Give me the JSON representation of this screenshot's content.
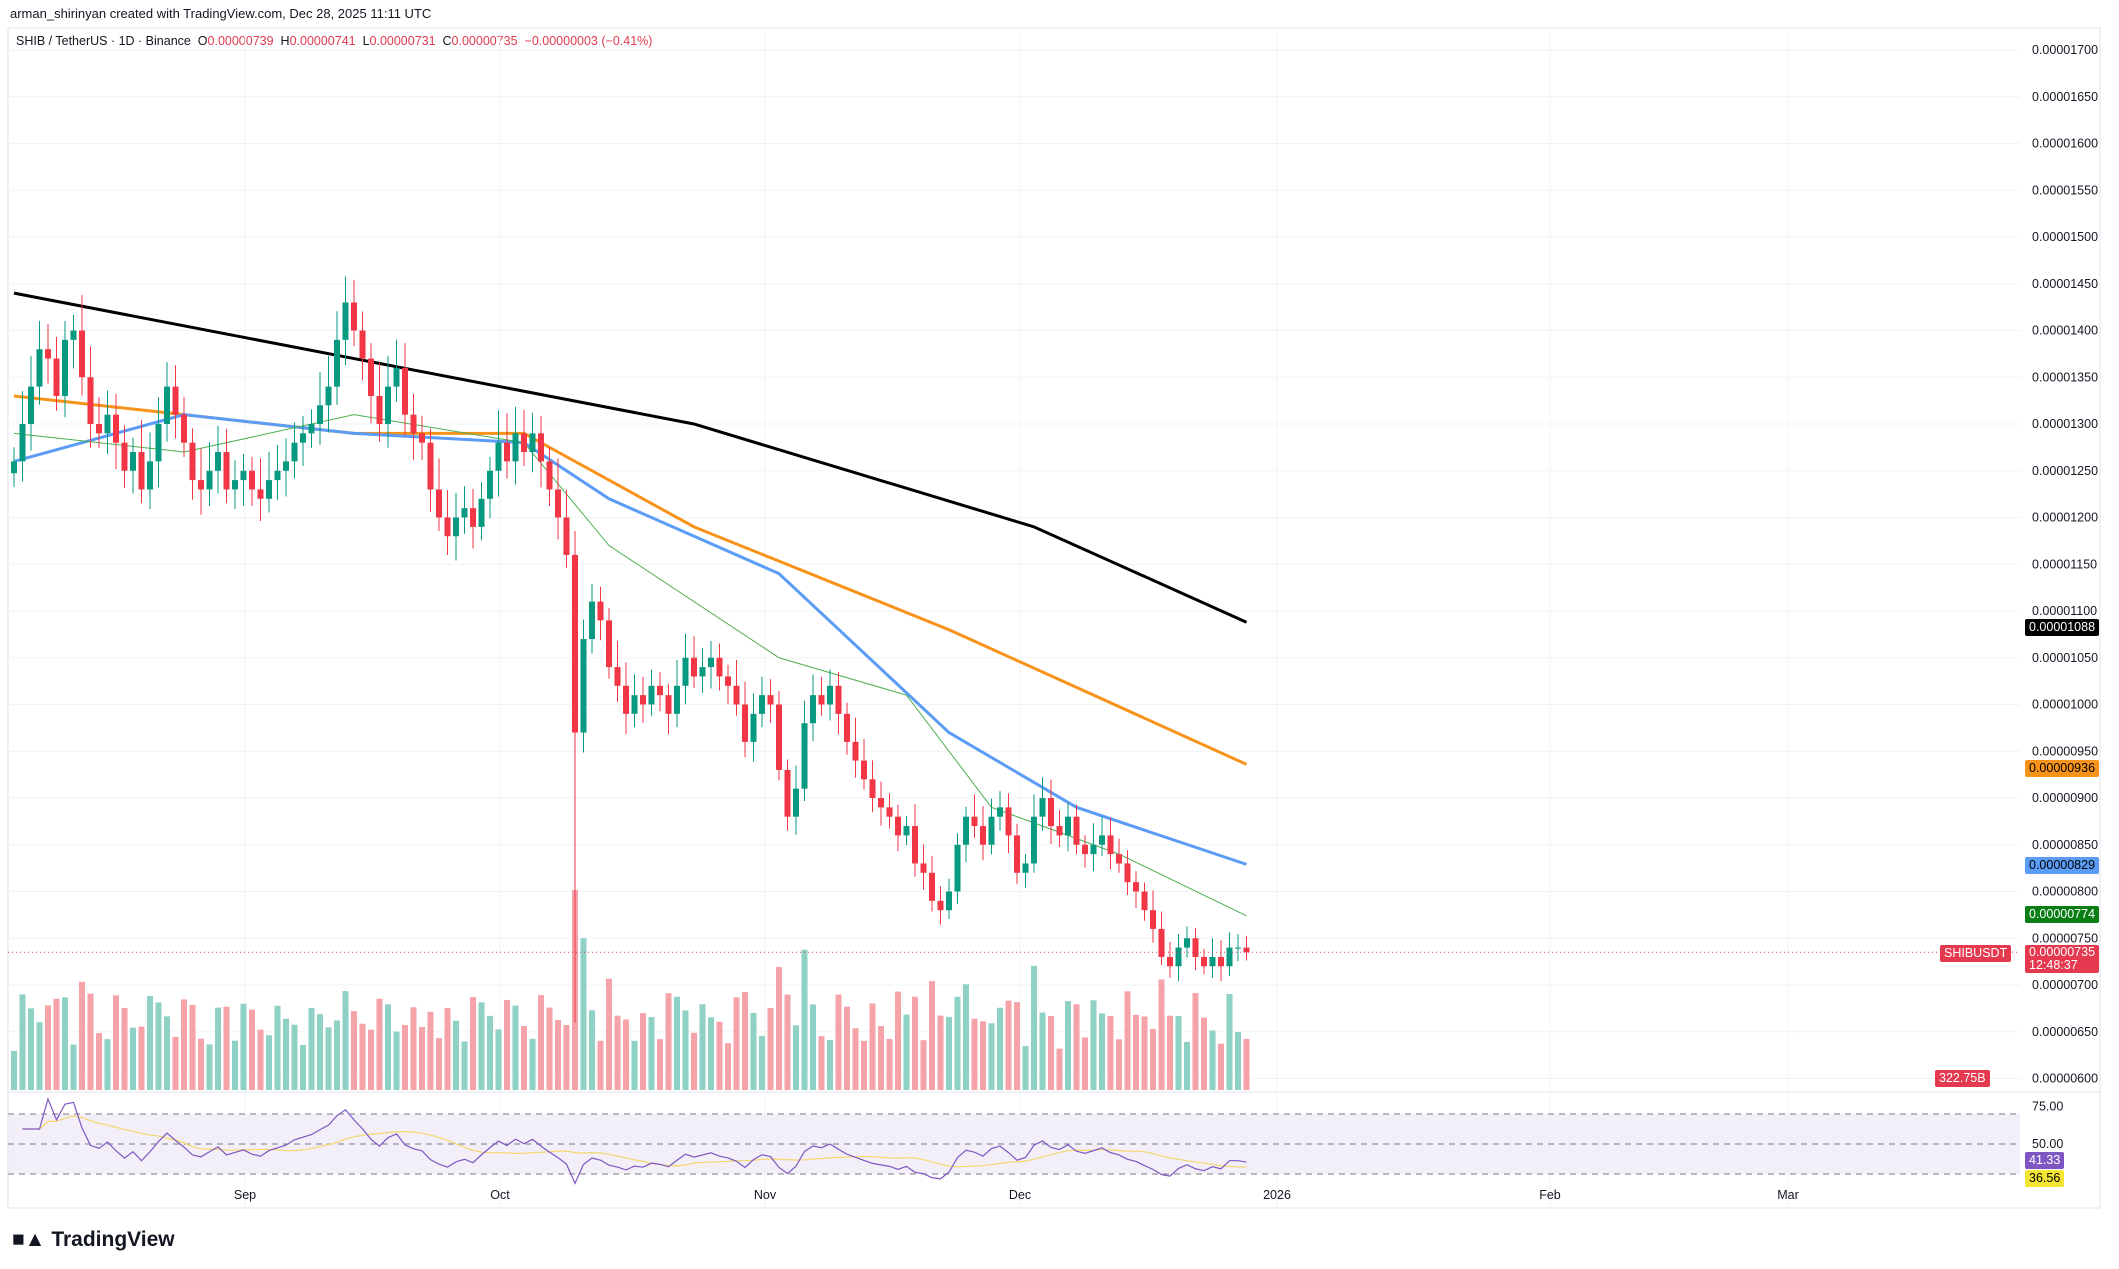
{
  "credit": "arman_shirinyan created with TradingView.com, Dec 28, 2025 11:11 UTC",
  "legend": {
    "symbol": "SHIB / TetherUS · 1D · Binance",
    "o_label": "O",
    "o": "0.00000739",
    "h_label": "H",
    "h": "0.00000741",
    "l_label": "L",
    "l": "0.00000731",
    "c_label": "C",
    "c": "0.00000735",
    "change": "−0.00000003 (−0.41%)"
  },
  "tags": {
    "ma_black": "0.00001088",
    "ma_orange": "0.00000936",
    "ma_blue": "0.00000829",
    "ma_green": "0.00000774",
    "symbol": "SHIBUSDT",
    "last": "0.00000735",
    "countdown": "12:48:37",
    "volume": "322.75B",
    "rsi": "41.33",
    "rsi_ma": "36.56"
  },
  "logo": "TradingView",
  "chart_data": {
    "type": "candlestick",
    "start_date": "2025-08-05",
    "interval": "1D",
    "closes": [
      1.26e-05,
      1.3e-05,
      1.34e-05,
      1.38e-05,
      1.37e-05,
      1.33e-05,
      1.39e-05,
      1.4e-05,
      1.35e-05,
      1.3e-05,
      1.29e-05,
      1.31e-05,
      1.28e-05,
      1.25e-05,
      1.27e-05,
      1.23e-05,
      1.26e-05,
      1.3e-05,
      1.34e-05,
      1.31e-05,
      1.28e-05,
      1.24e-05,
      1.23e-05,
      1.25e-05,
      1.27e-05,
      1.23e-05,
      1.24e-05,
      1.25e-05,
      1.23e-05,
      1.22e-05,
      1.24e-05,
      1.25e-05,
      1.26e-05,
      1.28e-05,
      1.29e-05,
      1.3e-05,
      1.32e-05,
      1.34e-05,
      1.39e-05,
      1.43e-05,
      1.4e-05,
      1.37e-05,
      1.33e-05,
      1.3e-05,
      1.34e-05,
      1.36e-05,
      1.31e-05,
      1.29e-05,
      1.28e-05,
      1.23e-05,
      1.2e-05,
      1.18e-05,
      1.2e-05,
      1.21e-05,
      1.19e-05,
      1.22e-05,
      1.25e-05,
      1.28e-05,
      1.26e-05,
      1.29e-05,
      1.27e-05,
      1.29e-05,
      1.26e-05,
      1.23e-05,
      1.2e-05,
      1.16e-05,
      9.7e-06,
      1.07e-05,
      1.11e-05,
      1.09e-05,
      1.04e-05,
      1.02e-05,
      9.9e-06,
      1.01e-05,
      1e-05,
      1.02e-05,
      1.01e-05,
      9.9e-06,
      1.02e-05,
      1.05e-05,
      1.03e-05,
      1.04e-05,
      1.05e-05,
      1.03e-05,
      1.02e-05,
      1e-05,
      9.6e-06,
      9.9e-06,
      1.01e-05,
      1e-05,
      9.3e-06,
      8.8e-06,
      9.1e-06,
      9.8e-06,
      1.01e-05,
      1e-05,
      1.02e-05,
      9.9e-06,
      9.6e-06,
      9.4e-06,
      9.2e-06,
      9e-06,
      8.9e-06,
      8.8e-06,
      8.6e-06,
      8.7e-06,
      8.3e-06,
      8.2e-06,
      7.9e-06,
      7.8e-06,
      8e-06,
      8.5e-06,
      8.8e-06,
      8.7e-06,
      8.5e-06,
      8.8e-06,
      8.9e-06,
      8.6e-06,
      8.2e-06,
      8.3e-06,
      8.8e-06,
      9e-06,
      8.7e-06,
      8.6e-06,
      8.8e-06,
      8.5e-06,
      8.4e-06,
      8.5e-06,
      8.6e-06,
      8.4e-06,
      8.3e-06,
      8.1e-06,
      8e-06,
      7.8e-06,
      7.6e-06,
      7.3e-06,
      7.2e-06,
      7.4e-06,
      7.5e-06,
      7.3e-06,
      7.2e-06,
      7.3e-06,
      7.2e-06,
      7.4e-06,
      7.4e-06,
      7.35e-06
    ],
    "moving_averages": [
      {
        "color": "#000000",
        "points": [
          [
            0,
            1.44e-05
          ],
          [
            40,
            1.37e-05
          ],
          [
            80,
            1.3e-05
          ],
          [
            120,
            1.19e-05
          ],
          [
            145,
            1.088e-05
          ]
        ]
      },
      {
        "color": "#f7931a",
        "points": [
          [
            0,
            1.33e-05
          ],
          [
            40,
            1.29e-05
          ],
          [
            60,
            1.29e-05
          ],
          [
            80,
            1.19e-05
          ],
          [
            110,
            1.08e-05
          ],
          [
            145,
            9.36e-06
          ]
        ]
      },
      {
        "color": "#5b9cf6",
        "points": [
          [
            0,
            1.26e-05
          ],
          [
            20,
            1.31e-05
          ],
          [
            40,
            1.29e-05
          ],
          [
            60,
            1.28e-05
          ],
          [
            70,
            1.22e-05
          ],
          [
            90,
            1.14e-05
          ],
          [
            110,
            9.7e-06
          ],
          [
            125,
            8.9e-06
          ],
          [
            145,
            8.29e-06
          ]
        ]
      },
      {
        "color": "#4caf50",
        "points": [
          [
            0,
            1.29e-05
          ],
          [
            20,
            1.27e-05
          ],
          [
            40,
            1.31e-05
          ],
          [
            60,
            1.28e-05
          ],
          [
            70,
            1.17e-05
          ],
          [
            90,
            1.05e-05
          ],
          [
            105,
            1.01e-05
          ],
          [
            115,
            8.9e-06
          ],
          [
            130,
            8.4e-06
          ],
          [
            145,
            7.74e-06
          ]
        ]
      }
    ],
    "y_ticks": [
      "0.00001700",
      "0.00001650",
      "0.00001600",
      "0.00001550",
      "0.00001500",
      "0.00001450",
      "0.00001400",
      "0.00001350",
      "0.00001300",
      "0.00001250",
      "0.00001200",
      "0.00001150",
      "0.00001100",
      "0.00001050",
      "0.00001000",
      "0.00000950",
      "0.00000900",
      "0.00000850",
      "0.00000800",
      "0.00000750",
      "0.00000700",
      "0.00000650",
      "0.00000600"
    ],
    "x_ticks": [
      "Sep",
      "Oct",
      "Nov",
      "Dec",
      "2026",
      "Feb",
      "Mar"
    ],
    "rsi_ticks": [
      "75.00",
      "50.00"
    ],
    "colors": {
      "up": "#089981",
      "down": "#f23645",
      "vol_up": "#8fd1c4",
      "vol_down": "#f5a3a9"
    }
  }
}
